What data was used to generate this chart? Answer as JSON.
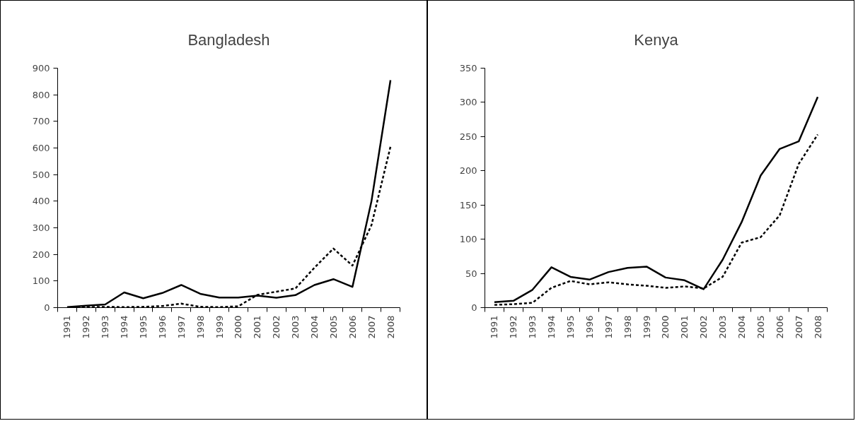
{
  "chart_data": [
    {
      "type": "line",
      "title": "Bangladesh",
      "categories": [
        "1991",
        "1992",
        "1993",
        "1994",
        "1995",
        "1996",
        "1997",
        "1998",
        "1999",
        "2000",
        "2001",
        "2002",
        "2003",
        "2004",
        "2005",
        "2006",
        "2007",
        "2008"
      ],
      "ylim": [
        0,
        900
      ],
      "yticks": [
        0,
        100,
        200,
        300,
        400,
        500,
        600,
        700,
        800,
        900
      ],
      "series": [
        {
          "color": "#000000",
          "line_style": "solid",
          "values": [
            2,
            7,
            12,
            57,
            35,
            55,
            85,
            52,
            38,
            38,
            45,
            37,
            47,
            85,
            107,
            78,
            400,
            855
          ]
        },
        {
          "color": "#000000",
          "line_style": "dashed",
          "values": [
            0,
            2,
            3,
            2,
            3,
            6,
            15,
            3,
            2,
            5,
            48,
            60,
            72,
            150,
            222,
            158,
            310,
            605
          ]
        }
      ]
    },
    {
      "type": "line",
      "title": "Kenya",
      "categories": [
        "1991",
        "1992",
        "1993",
        "1994",
        "1995",
        "1996",
        "1997",
        "1998",
        "1999",
        "2000",
        "2001",
        "2002",
        "2003",
        "2004",
        "2005",
        "2006",
        "2007",
        "2008"
      ],
      "ylim": [
        0,
        350
      ],
      "yticks": [
        0,
        50,
        100,
        150,
        200,
        250,
        300,
        350
      ],
      "series": [
        {
          "color": "#000000",
          "line_style": "solid",
          "values": [
            8,
            10,
            26,
            59,
            45,
            41,
            52,
            58,
            60,
            44,
            40,
            27,
            70,
            125,
            193,
            232,
            243,
            308
          ]
        },
        {
          "color": "#000000",
          "line_style": "dashed",
          "values": [
            4,
            5,
            7,
            29,
            39,
            34,
            37,
            34,
            32,
            29,
            31,
            28,
            45,
            95,
            103,
            135,
            210,
            253
          ]
        }
      ]
    }
  ]
}
